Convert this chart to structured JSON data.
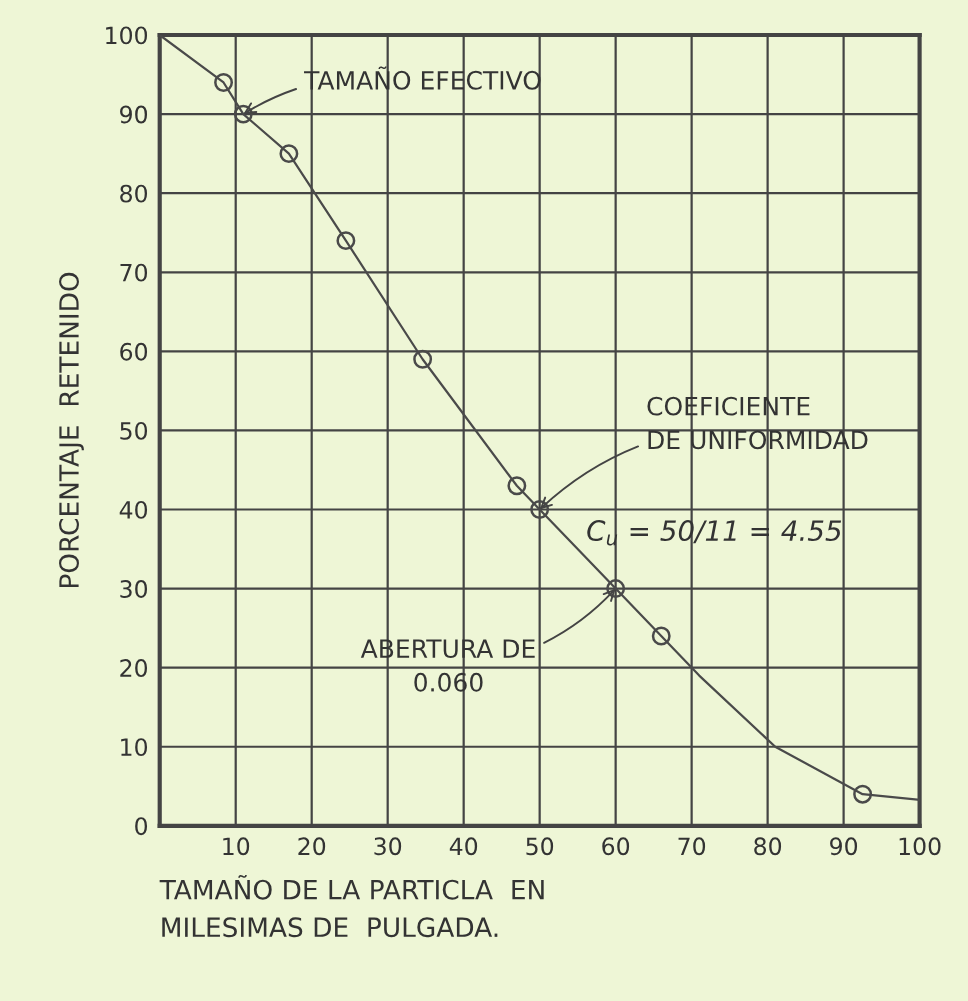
{
  "chart_data": {
    "type": "line",
    "xlabel": "TAMAÑO DE LA PARTICLA  EN\nMILESIMAS DE  PULGADA.",
    "ylabel": "PORCENTAJE  RETENIDO",
    "xlim": [
      0,
      100
    ],
    "ylim": [
      0,
      100
    ],
    "xticks": [
      10,
      20,
      30,
      40,
      50,
      60,
      70,
      80,
      90,
      100
    ],
    "yticks": [
      0,
      10,
      20,
      30,
      40,
      50,
      60,
      70,
      80,
      90,
      100
    ],
    "grid": true,
    "series": [
      {
        "color": "#4a4a4a",
        "marker": "none",
        "line_style": "solid",
        "x": [
          0,
          8.4,
          11,
          17,
          24.5,
          34.6,
          47,
          50,
          60,
          66,
          71,
          81,
          92.5,
          100
        ],
        "values": [
          100,
          94,
          90,
          85,
          74,
          59,
          43,
          40,
          30,
          24,
          19,
          10,
          4,
          3.3
        ]
      },
      {
        "type": "scatter",
        "color": "#4a4a4a",
        "marker": "circle",
        "x": [
          8.4,
          11,
          17,
          24.5,
          34.6,
          47,
          50,
          60,
          66,
          92.5
        ],
        "values": [
          94,
          90,
          85,
          74,
          59,
          43,
          40,
          30,
          24,
          4
        ]
      }
    ],
    "annotations": [
      {
        "text": "TAMAÑO EFECTIVO",
        "x": 11,
        "y": 90
      },
      {
        "text": "COEFICIENTE\nDE UNIFORMIDAD",
        "x": 50,
        "y": 40
      },
      {
        "text": "ABERTURA DE\n0.060",
        "x": 60,
        "y": 30
      },
      "C$_{u}$ = 50/11 = 4.55"
    ]
  }
}
